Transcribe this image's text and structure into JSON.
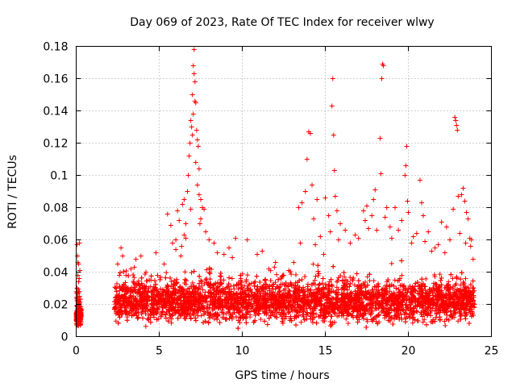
{
  "chart_data": {
    "type": "scatter",
    "title": "Day 069 of 2023, Rate Of TEC Index for receiver wlwy",
    "xlabel": "GPS time / hours",
    "ylabel": "ROTI / TECUs",
    "xlim": [
      0,
      25
    ],
    "ylim": [
      0,
      0.18
    ],
    "x_ticks": [
      "0",
      "5",
      "10",
      "15",
      "20",
      "25"
    ],
    "y_ticks": [
      "0",
      "0.02",
      "0.04",
      "0.06",
      "0.08",
      "0.1",
      "0.12",
      "0.14",
      "0.16",
      "0.18"
    ],
    "grid": true,
    "marker": "+",
    "color": "#ff0000",
    "series": [
      {
        "name": "ROTI",
        "points": [
          [
            0.05,
            0.057
          ],
          [
            0.1,
            0.046
          ],
          [
            0.1,
            0.038
          ],
          [
            0.05,
            0.03
          ],
          [
            0.1,
            0.022
          ],
          [
            0.05,
            0.016
          ],
          [
            0.1,
            0.012
          ],
          [
            0.15,
            0.009
          ],
          [
            0.2,
            0.013
          ],
          [
            0.1,
            0.007
          ],
          [
            0.2,
            0.058
          ],
          [
            0.15,
            0.034
          ],
          [
            0.2,
            0.025
          ],
          [
            0.05,
            0.019
          ],
          [
            2.5,
            0.045
          ],
          [
            2.6,
            0.038
          ],
          [
            2.7,
            0.055
          ],
          [
            2.8,
            0.05
          ],
          [
            3.0,
            0.038
          ],
          [
            3.3,
            0.042
          ],
          [
            3.6,
            0.048
          ],
          [
            3.9,
            0.05
          ],
          [
            4.2,
            0.04
          ],
          [
            4.5,
            0.035
          ],
          [
            4.9,
            0.038
          ],
          [
            5.3,
            0.045
          ],
          [
            5.5,
            0.076
          ],
          [
            5.7,
            0.069
          ],
          [
            6.0,
            0.06
          ],
          [
            6.1,
            0.078
          ],
          [
            6.2,
            0.072
          ],
          [
            6.3,
            0.05
          ],
          [
            6.5,
            0.063
          ],
          [
            6.6,
            0.07
          ],
          [
            6.7,
            0.09
          ],
          [
            6.75,
            0.1
          ],
          [
            6.8,
            0.112
          ],
          [
            6.85,
            0.12
          ],
          [
            6.9,
            0.134
          ],
          [
            6.95,
            0.13
          ],
          [
            7.0,
            0.15
          ],
          [
            7.05,
            0.168
          ],
          [
            7.1,
            0.178
          ],
          [
            7.15,
            0.158
          ],
          [
            7.2,
            0.145
          ],
          [
            7.25,
            0.128
          ],
          [
            7.3,
            0.122
          ],
          [
            7.35,
            0.118
          ],
          [
            7.4,
            0.104
          ],
          [
            7.5,
            0.085
          ],
          [
            7.6,
            0.08
          ],
          [
            7.7,
            0.079
          ],
          [
            7.0,
            0.125
          ],
          [
            7.05,
            0.138
          ],
          [
            7.1,
            0.163
          ],
          [
            7.15,
            0.146
          ],
          [
            7.2,
            0.108
          ],
          [
            7.3,
            0.094
          ],
          [
            7.4,
            0.088
          ],
          [
            7.5,
            0.073
          ],
          [
            6.4,
            0.082
          ],
          [
            6.5,
            0.085
          ],
          [
            7.8,
            0.065
          ],
          [
            8.0,
            0.06
          ],
          [
            8.5,
            0.052
          ],
          [
            9.2,
            0.055
          ],
          [
            9.6,
            0.061
          ],
          [
            10.3,
            0.06
          ],
          [
            10.9,
            0.051
          ],
          [
            11.6,
            0.042
          ],
          [
            12.5,
            0.038
          ],
          [
            13.1,
            0.046
          ],
          [
            13.4,
            0.08
          ],
          [
            13.6,
            0.083
          ],
          [
            13.8,
            0.09
          ],
          [
            13.9,
            0.11
          ],
          [
            14.0,
            0.127
          ],
          [
            14.1,
            0.126
          ],
          [
            14.2,
            0.094
          ],
          [
            14.5,
            0.085
          ],
          [
            14.3,
            0.073
          ],
          [
            14.7,
            0.062
          ],
          [
            14.9,
            0.051
          ],
          [
            15.0,
            0.086
          ],
          [
            15.2,
            0.075
          ],
          [
            15.3,
            0.065
          ],
          [
            15.4,
            0.143
          ],
          [
            15.45,
            0.16
          ],
          [
            15.5,
            0.125
          ],
          [
            15.55,
            0.103
          ],
          [
            15.6,
            0.087
          ],
          [
            15.7,
            0.078
          ],
          [
            15.9,
            0.07
          ],
          [
            16.2,
            0.066
          ],
          [
            16.8,
            0.063
          ],
          [
            17.3,
            0.078
          ],
          [
            17.5,
            0.081
          ],
          [
            17.6,
            0.067
          ],
          [
            17.8,
            0.075
          ],
          [
            17.9,
            0.085
          ],
          [
            18.0,
            0.091
          ],
          [
            18.3,
            0.123
          ],
          [
            18.35,
            0.101
          ],
          [
            18.4,
            0.16
          ],
          [
            18.45,
            0.169
          ],
          [
            18.5,
            0.168
          ],
          [
            18.7,
            0.08
          ],
          [
            18.9,
            0.068
          ],
          [
            19.2,
            0.08
          ],
          [
            19.6,
            0.072
          ],
          [
            19.8,
            0.1
          ],
          [
            19.85,
            0.106
          ],
          [
            19.9,
            0.118
          ],
          [
            19.95,
            0.084
          ],
          [
            20.0,
            0.077
          ],
          [
            20.3,
            0.062
          ],
          [
            20.7,
            0.097
          ],
          [
            20.8,
            0.083
          ],
          [
            20.9,
            0.075
          ],
          [
            21.2,
            0.065
          ],
          [
            21.6,
            0.055
          ],
          [
            22.0,
            0.071
          ],
          [
            22.3,
            0.068
          ],
          [
            22.5,
            0.06
          ],
          [
            22.7,
            0.079
          ],
          [
            22.8,
            0.136
          ],
          [
            22.85,
            0.134
          ],
          [
            22.9,
            0.131
          ],
          [
            22.95,
            0.128
          ],
          [
            23.0,
            0.087
          ],
          [
            23.2,
            0.088
          ],
          [
            23.3,
            0.092
          ],
          [
            23.4,
            0.084
          ],
          [
            23.5,
            0.077
          ],
          [
            23.6,
            0.073
          ],
          [
            23.7,
            0.061
          ],
          [
            23.8,
            0.06
          ],
          [
            23.9,
            0.048
          ],
          [
            0.15,
            0.045
          ],
          [
            0.18,
            0.036
          ],
          [
            0.12,
            0.027
          ],
          [
            0.08,
            0.05
          ],
          [
            0.22,
            0.041
          ],
          [
            0.17,
            0.008
          ],
          [
            0.07,
            0.011
          ],
          [
            0.23,
            0.016
          ],
          [
            3.5,
            0.043
          ],
          [
            4.8,
            0.052
          ],
          [
            5.8,
            0.058
          ],
          [
            6.0,
            0.054
          ],
          [
            6.35,
            0.056
          ],
          [
            6.6,
            0.061
          ],
          [
            6.9,
            0.079
          ],
          [
            7.45,
            0.07
          ],
          [
            8.3,
            0.058
          ],
          [
            8.9,
            0.051
          ],
          [
            9.4,
            0.049
          ],
          [
            11.2,
            0.053
          ],
          [
            12.0,
            0.046
          ],
          [
            12.8,
            0.041
          ],
          [
            13.5,
            0.058
          ],
          [
            14.4,
            0.057
          ],
          [
            15.8,
            0.06
          ],
          [
            16.5,
            0.058
          ],
          [
            17.0,
            0.061
          ],
          [
            17.4,
            0.072
          ],
          [
            18.1,
            0.066
          ],
          [
            18.6,
            0.074
          ],
          [
            19.0,
            0.061
          ],
          [
            19.4,
            0.066
          ],
          [
            20.2,
            0.058
          ],
          [
            20.5,
            0.064
          ],
          [
            21.0,
            0.059
          ],
          [
            21.4,
            0.053
          ],
          [
            21.8,
            0.057
          ],
          [
            22.2,
            0.052
          ],
          [
            23.1,
            0.064
          ],
          [
            23.45,
            0.058
          ],
          [
            23.75,
            0.056
          ]
        ],
        "dense_band": {
          "x_range": [
            2.3,
            24.0
          ],
          "y_range": [
            0.004,
            0.036
          ],
          "description": "continuous dense cluster of points"
        },
        "dense_band_extra": {
          "x_range": [
            0.0,
            0.3
          ],
          "y_range": [
            0.005,
            0.02
          ]
        }
      }
    ]
  }
}
